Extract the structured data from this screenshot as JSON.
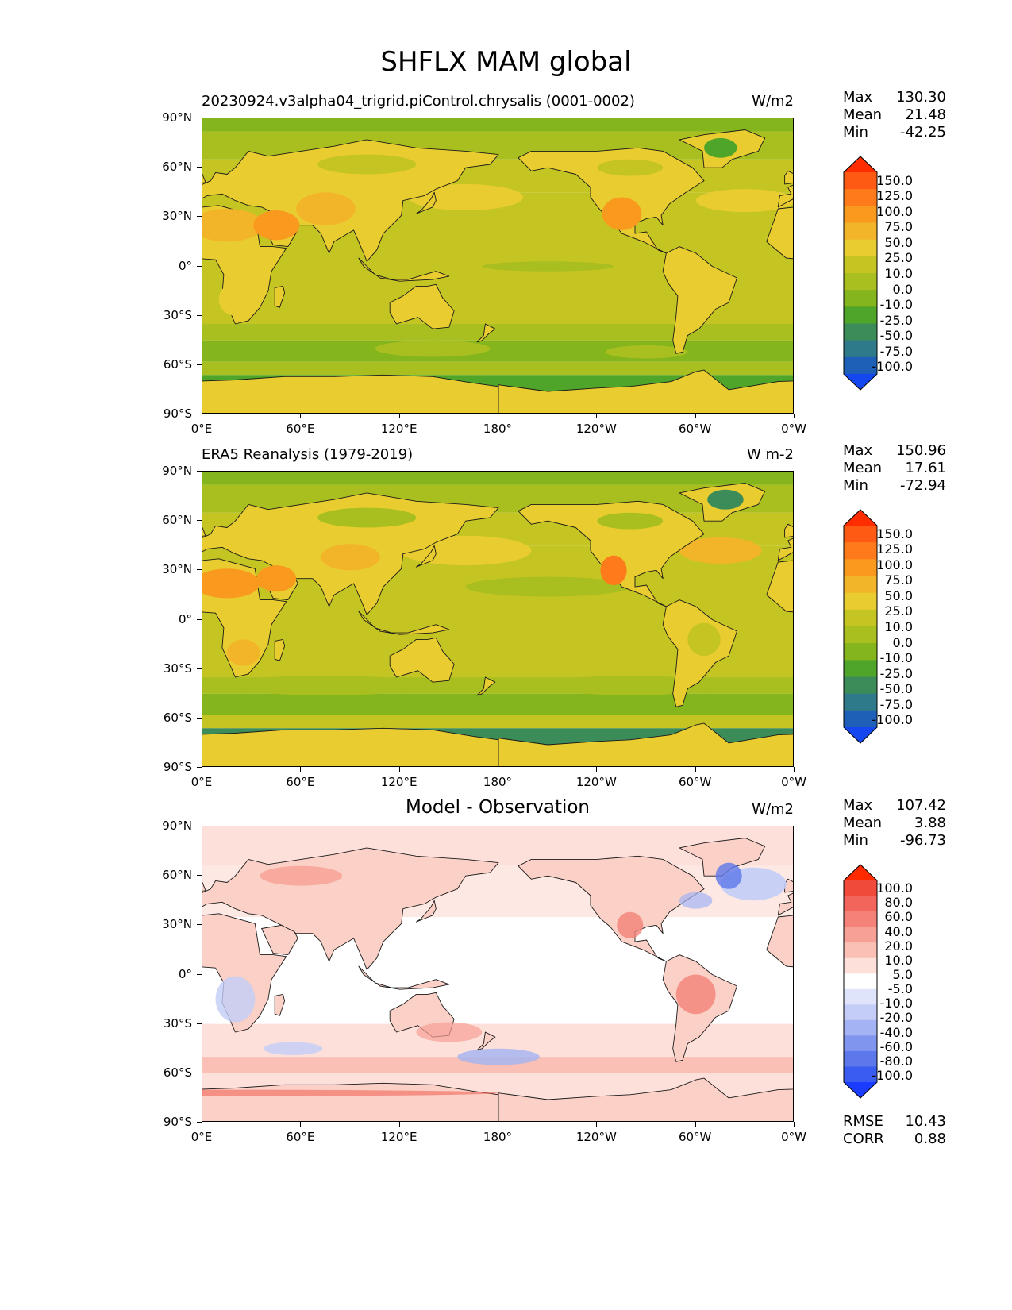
{
  "figure": {
    "title": "SHFLX MAM global"
  },
  "axes": {
    "lat_ticks": [
      "90°N",
      "60°N",
      "30°N",
      "0°",
      "30°S",
      "60°S",
      "90°S"
    ],
    "lon_ticks": [
      "0°E",
      "60°E",
      "120°E",
      "180°",
      "120°W",
      "60°W",
      "0°W"
    ]
  },
  "panels": [
    {
      "title": "20230924.v3alpha04_trigrid.piControl.chrysalis (0001-0002)",
      "title_style": "left",
      "units": "W/m2",
      "stats": [
        {
          "label": "Max",
          "value": "130.30"
        },
        {
          "label": "Mean",
          "value": "21.48"
        },
        {
          "label": "Min",
          "value": "-42.25"
        }
      ],
      "colorbar": {
        "levels": [
          "150.0",
          "125.0",
          "100.0",
          "75.0",
          "50.0",
          "25.0",
          "10.0",
          "0.0",
          "-10.0",
          "-25.0",
          "-50.0",
          "-75.0",
          "-100.0"
        ],
        "colors": [
          "#ff2d00",
          "#ff5a14",
          "#ff7a1a",
          "#f99a1f",
          "#f2b52a",
          "#e9cc2f",
          "#c4c422",
          "#a8bf1f",
          "#84b51c",
          "#4fa52a",
          "#3c8c5a",
          "#2f7a8a",
          "#1e5fb8",
          "#1447f0"
        ]
      }
    },
    {
      "title": "ERA5 Reanalysis (1979-2019)",
      "title_style": "left",
      "units": "W m-2",
      "stats": [
        {
          "label": "Max",
          "value": "150.96"
        },
        {
          "label": "Mean",
          "value": "17.61"
        },
        {
          "label": "Min",
          "value": "-72.94"
        }
      ],
      "colorbar": {
        "levels": [
          "150.0",
          "125.0",
          "100.0",
          "75.0",
          "50.0",
          "25.0",
          "10.0",
          "0.0",
          "-10.0",
          "-25.0",
          "-50.0",
          "-75.0",
          "-100.0"
        ],
        "colors": [
          "#ff2d00",
          "#ff5a14",
          "#ff7a1a",
          "#f99a1f",
          "#f2b52a",
          "#e9cc2f",
          "#c4c422",
          "#a8bf1f",
          "#84b51c",
          "#4fa52a",
          "#3c8c5a",
          "#2f7a8a",
          "#1e5fb8",
          "#1447f0"
        ]
      }
    },
    {
      "title": "Model - Observation",
      "title_style": "center",
      "units": "W/m2",
      "stats": [
        {
          "label": "Max",
          "value": "107.42"
        },
        {
          "label": "Mean",
          "value": "3.88"
        },
        {
          "label": "Min",
          "value": "-96.73"
        }
      ],
      "colorbar": {
        "levels": [
          "100.0",
          "80.0",
          "60.0",
          "40.0",
          "20.0",
          "10.0",
          "5.0",
          "-5.0",
          "-10.0",
          "-20.0",
          "-40.0",
          "-60.0",
          "-80.0",
          "-100.0"
        ],
        "colors": [
          "#ff2a00",
          "#f04a3a",
          "#f2655a",
          "#f48278",
          "#f7a095",
          "#fac0b5",
          "#fde0da",
          "#ffffff",
          "#dfe4fb",
          "#c3cdf7",
          "#a3b3f3",
          "#7f95ee",
          "#5c78ea",
          "#3a5cf0",
          "#1a3cff"
        ]
      },
      "extra_stats": [
        {
          "label": "RMSE",
          "value": "10.43"
        },
        {
          "label": "CORR",
          "value": "0.88"
        }
      ]
    }
  ]
}
